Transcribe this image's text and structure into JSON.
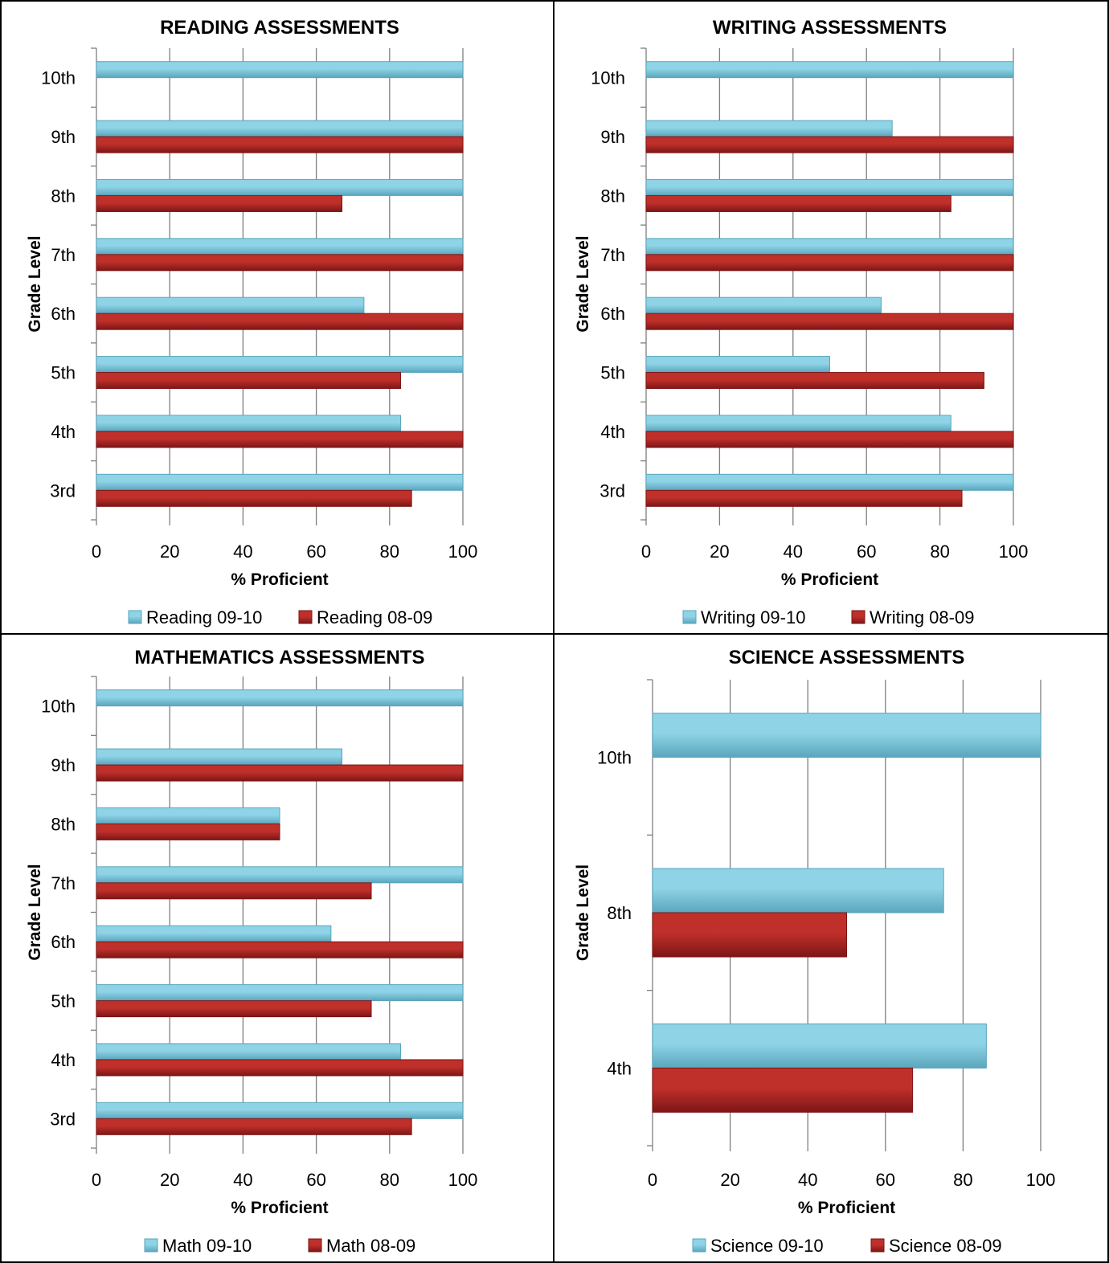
{
  "colors": {
    "current": "#8fd3e6",
    "current_edge": "#5aa6bd",
    "previous": "#c0302b",
    "previous_edge": "#7d1616",
    "gridline": "#7f7f7f",
    "axis": "#7f7f7f"
  },
  "chart_data": [
    {
      "type": "bar",
      "orientation": "horizontal",
      "title": "READING ASSESSMENTS",
      "xlabel": "% Proficient",
      "ylabel": "Grade Level",
      "xlim": [
        0,
        100
      ],
      "xticks": [
        "0",
        "20",
        "40",
        "60",
        "80",
        "100"
      ],
      "categories": [
        "3rd",
        "4th",
        "5th",
        "6th",
        "7th",
        "8th",
        "9th",
        "10th"
      ],
      "series": [
        {
          "name": "Reading 09-10",
          "values": [
            100,
            83,
            100,
            73,
            100,
            100,
            100,
            100
          ]
        },
        {
          "name": "Reading 08-09",
          "values": [
            86,
            100,
            83,
            100,
            100,
            67,
            100,
            null
          ]
        }
      ],
      "legend": "bottom",
      "grid": true
    },
    {
      "type": "bar",
      "orientation": "horizontal",
      "title": "WRITING ASSESSMENTS",
      "xlabel": "% Proficient",
      "ylabel": "Grade Level",
      "xlim": [
        0,
        100
      ],
      "xticks": [
        "0",
        "20",
        "40",
        "60",
        "80",
        "100"
      ],
      "categories": [
        "3rd",
        "4th",
        "5th",
        "6th",
        "7th",
        "8th",
        "9th",
        "10th"
      ],
      "series": [
        {
          "name": "Writing 09-10",
          "values": [
            100,
            83,
            50,
            64,
            100,
            100,
            67,
            100
          ]
        },
        {
          "name": "Writing 08-09",
          "values": [
            86,
            100,
            92,
            100,
            100,
            83,
            100,
            null
          ]
        }
      ],
      "legend": "bottom",
      "grid": true
    },
    {
      "type": "bar",
      "orientation": "horizontal",
      "title": "MATHEMATICS ASSESSMENTS",
      "xlabel": "% Proficient",
      "ylabel": "Grade Level",
      "xlim": [
        0,
        100
      ],
      "xticks": [
        "0",
        "20",
        "40",
        "60",
        "80",
        "100"
      ],
      "categories": [
        "3rd",
        "4th",
        "5th",
        "6th",
        "7th",
        "8th",
        "9th",
        "10th"
      ],
      "series": [
        {
          "name": "Math 09-10",
          "values": [
            100,
            83,
            100,
            64,
            100,
            50,
            67,
            100
          ]
        },
        {
          "name": "Math 08-09",
          "values": [
            86,
            100,
            75,
            100,
            75,
            50,
            100,
            null
          ]
        }
      ],
      "legend": "bottom",
      "grid": true
    },
    {
      "type": "bar",
      "orientation": "horizontal",
      "title": "SCIENCE ASSESSMENTS",
      "xlabel": "% Proficient",
      "ylabel": "Grade Level",
      "xlim": [
        0,
        100
      ],
      "xticks": [
        "0",
        "20",
        "40",
        "60",
        "80",
        "100"
      ],
      "categories": [
        "4th",
        "8th",
        "10th"
      ],
      "series": [
        {
          "name": "Science 09-10",
          "values": [
            86,
            75,
            100
          ]
        },
        {
          "name": "Science 08-09",
          "values": [
            67,
            50,
            null
          ]
        }
      ],
      "legend": "bottom",
      "grid": true
    }
  ]
}
